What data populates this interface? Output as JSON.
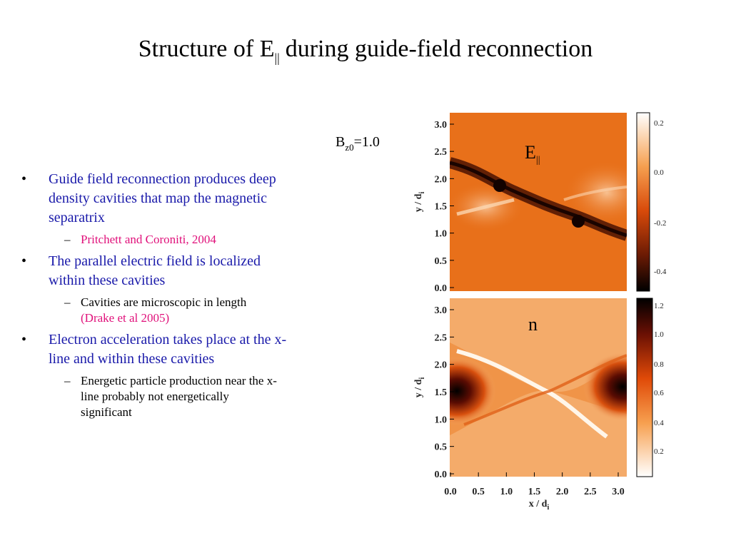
{
  "header": {
    "title": "Structure of E",
    "title_sub": "||",
    "title_rest": "during guide-field reconnection"
  },
  "bullets": [
    {
      "text": "Guide field reconnection produces deep density cavities that map the magnetic separatrix",
      "subs": [
        {
          "citation": "Pritchett and Coroniti, 2004"
        }
      ]
    },
    {
      "text": "The parallel electric field is localized within these cavities",
      "subs": [
        {
          "text": "Cavities are microscopic in length",
          "citation": "(Drake et al 2005)"
        }
      ]
    },
    {
      "text": "Electron acceleration takes place at the x-line and within these cavities",
      "subs": [
        {
          "text": "Energetic particle production near the x-line probably not energetically significant"
        }
      ]
    }
  ],
  "figure": {
    "field_label": {
      "main": "B",
      "sub": "z0",
      "rest": "=1.0"
    },
    "panels": [
      {
        "label": "E",
        "label_sub": "||",
        "y_label": "y / d",
        "y_label_sub": "i",
        "y_ticks": [
          "0.0",
          "0.5",
          "1.0",
          "1.5",
          "2.0",
          "2.5",
          "3.0"
        ],
        "colorbar_ticks": [
          "0.2",
          "0.0",
          "-0.2",
          "-0.4"
        ]
      },
      {
        "label": "n",
        "y_label": "y / d",
        "y_label_sub": "i",
        "y_ticks": [
          "0.0",
          "0.5",
          "1.0",
          "1.5",
          "2.0",
          "2.5",
          "3.0"
        ],
        "colorbar_ticks": [
          "1.2",
          "1.0",
          "0.8",
          "0.6",
          "0.4",
          "0.2"
        ]
      }
    ],
    "x_label": "x / d",
    "x_label_sub": "i",
    "x_ticks": [
      "0.0",
      "0.5",
      "1.0",
      "1.5",
      "2.0",
      "2.5",
      "3.0"
    ]
  }
}
